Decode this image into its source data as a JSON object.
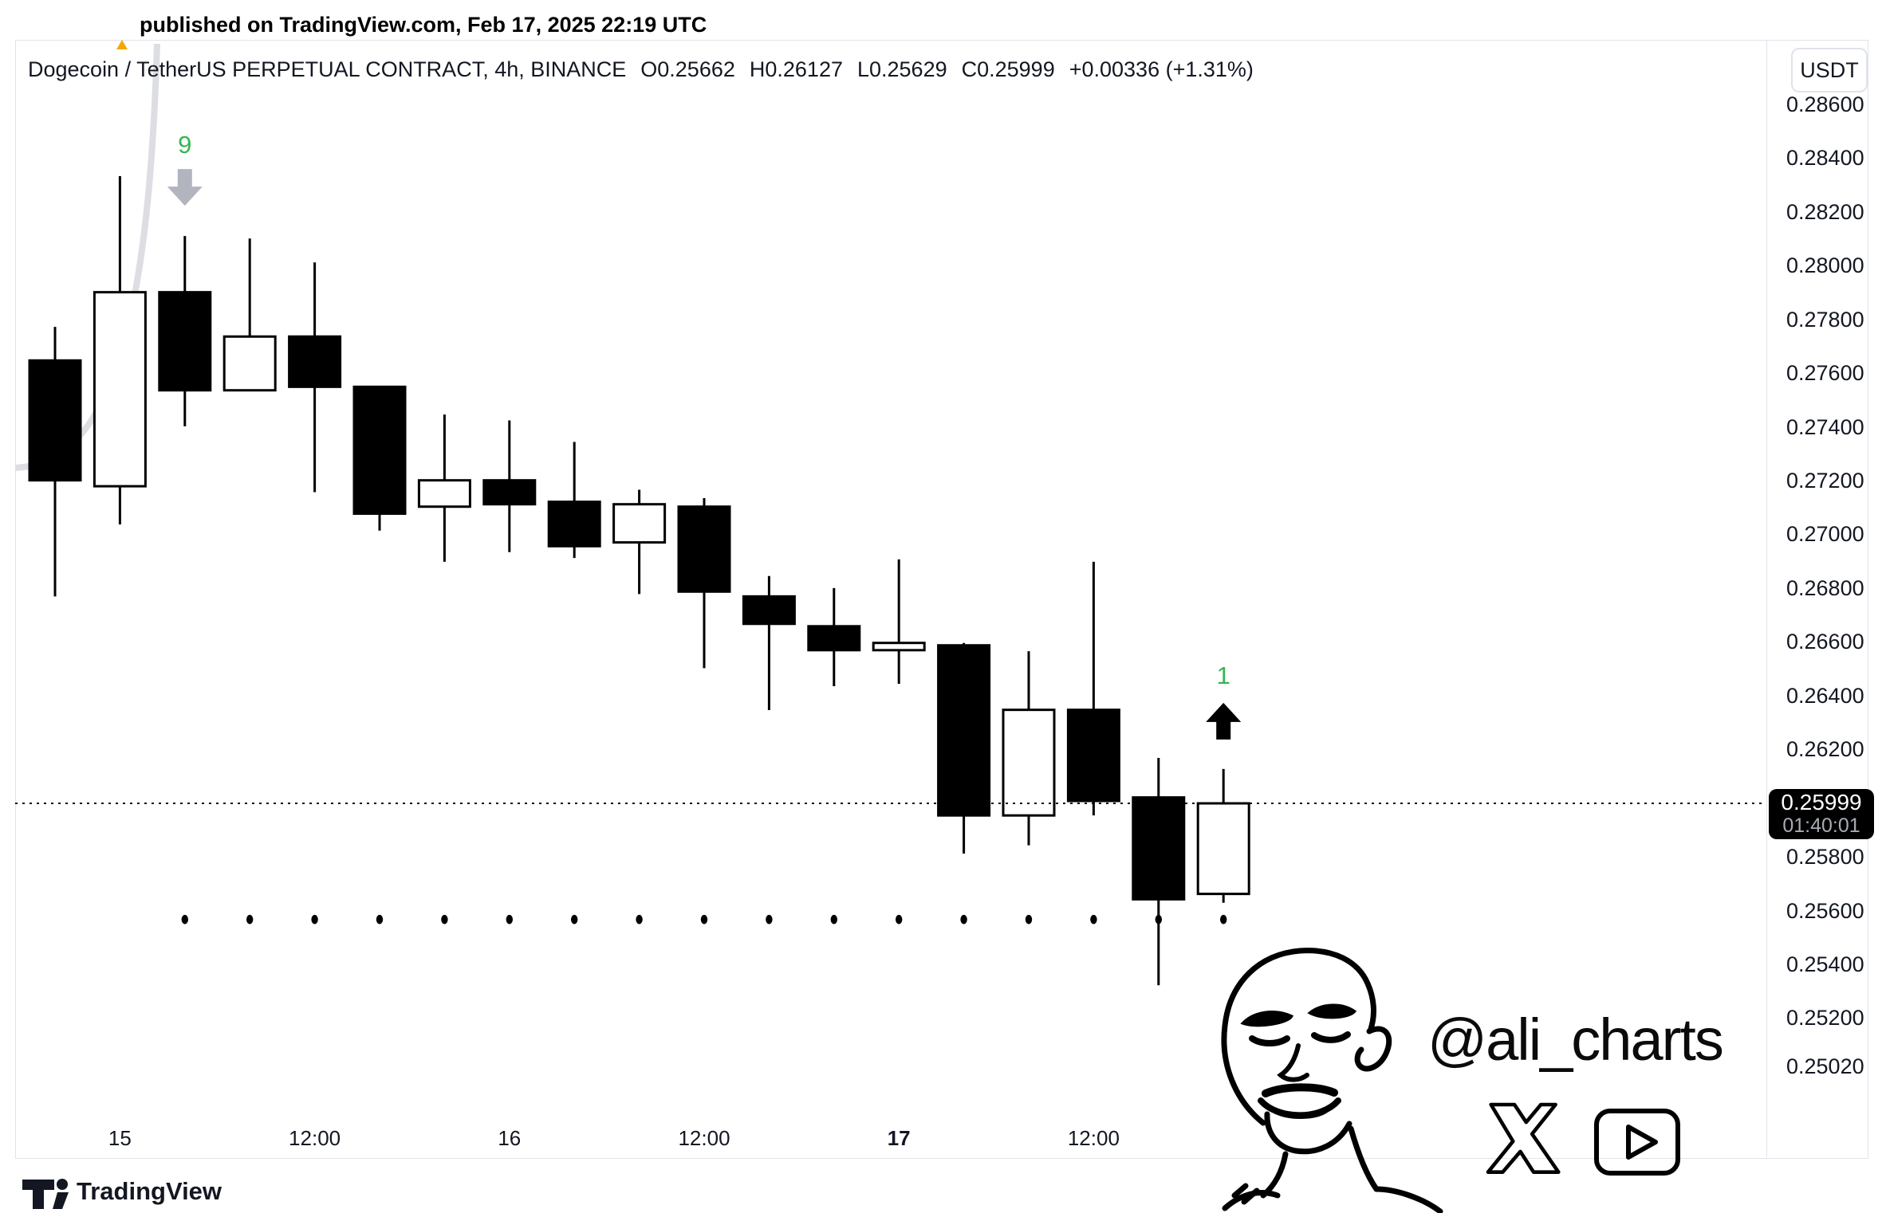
{
  "published": {
    "text": "published on TradingView.com, Feb 17, 2025 22:19 UTC"
  },
  "header": {
    "symbol_line": "Dogecoin / TetherUS PERPETUAL CONTRACT, 4h, BINANCE",
    "ohlc": {
      "open": "O0.25662",
      "high": "H0.26127",
      "low": "L0.25629",
      "close": "C0.25999",
      "change": "+0.00336 (+1.31%)"
    }
  },
  "price_axis": {
    "currency": "USDT",
    "labels": [
      0.286,
      0.284,
      0.282,
      0.28,
      0.278,
      0.276,
      0.274,
      0.272,
      0.27,
      0.268,
      0.266,
      0.264,
      0.262,
      0.258,
      0.256,
      0.254,
      0.252,
      0.2502
    ],
    "badge": {
      "price": "0.25999",
      "countdown": "01:40:01"
    }
  },
  "time_axis": {
    "labels": [
      {
        "text": "15",
        "candle_index": 1,
        "bold": false
      },
      {
        "text": "12:00",
        "candle_index": 4,
        "bold": false
      },
      {
        "text": "16",
        "candle_index": 7,
        "bold": false
      },
      {
        "text": "12:00",
        "candle_index": 10,
        "bold": false
      },
      {
        "text": "17",
        "candle_index": 13,
        "bold": true
      },
      {
        "text": "12:00",
        "candle_index": 16,
        "bold": false
      }
    ]
  },
  "chart_data": {
    "type": "candlestick",
    "symbol": "DOGEUSDT.P",
    "exchange": "BINANCE",
    "interval": "4h",
    "ylim": [
      0.24813,
      0.28846
    ],
    "grid": false,
    "last_price": 0.25999,
    "dots_level": 0.25567,
    "candles": [
      {
        "t": "Feb 14 20:00",
        "o": 0.27647,
        "h": 0.27772,
        "l": 0.26769,
        "c": 0.27201,
        "dot": false,
        "marker": null
      },
      {
        "t": "Feb 15 00:00",
        "o": 0.27179,
        "h": 0.28333,
        "l": 0.27037,
        "c": 0.27901,
        "dot": false,
        "marker": null
      },
      {
        "t": "Feb 15 04:00",
        "o": 0.27901,
        "h": 0.2811,
        "l": 0.27402,
        "c": 0.27536,
        "dot": true,
        "marker": "9"
      },
      {
        "t": "Feb 15 08:00",
        "o": 0.27536,
        "h": 0.28101,
        "l": 0.27536,
        "c": 0.27736,
        "dot": true,
        "marker": null
      },
      {
        "t": "Feb 15 12:00",
        "o": 0.27736,
        "h": 0.28012,
        "l": 0.27157,
        "c": 0.27549,
        "dot": true,
        "marker": null
      },
      {
        "t": "Feb 15 16:00",
        "o": 0.27549,
        "h": 0.27549,
        "l": 0.27014,
        "c": 0.27077,
        "dot": true,
        "marker": null
      },
      {
        "t": "Feb 15 20:00",
        "o": 0.27103,
        "h": 0.27446,
        "l": 0.26898,
        "c": 0.27201,
        "dot": true,
        "marker": null
      },
      {
        "t": "Feb 16 00:00",
        "o": 0.27201,
        "h": 0.27424,
        "l": 0.26934,
        "c": 0.27112,
        "dot": true,
        "marker": null
      },
      {
        "t": "Feb 16 04:00",
        "o": 0.27121,
        "h": 0.27344,
        "l": 0.26912,
        "c": 0.26956,
        "dot": true,
        "marker": null
      },
      {
        "t": "Feb 16 08:00",
        "o": 0.2697,
        "h": 0.27166,
        "l": 0.26778,
        "c": 0.27112,
        "dot": true,
        "marker": null
      },
      {
        "t": "Feb 16 12:00",
        "o": 0.27103,
        "h": 0.27135,
        "l": 0.26502,
        "c": 0.26787,
        "dot": true,
        "marker": null
      },
      {
        "t": "Feb 16 16:00",
        "o": 0.26769,
        "h": 0.26845,
        "l": 0.26346,
        "c": 0.26667,
        "dot": true,
        "marker": null
      },
      {
        "t": "Feb 16 20:00",
        "o": 0.26658,
        "h": 0.268,
        "l": 0.26435,
        "c": 0.26569,
        "dot": true,
        "marker": null
      },
      {
        "t": "Feb 17 00:00",
        "o": 0.26569,
        "h": 0.26907,
        "l": 0.26444,
        "c": 0.26596,
        "dot": true,
        "marker": null
      },
      {
        "t": "Feb 17 04:00",
        "o": 0.26587,
        "h": 0.26596,
        "l": 0.25812,
        "c": 0.25954,
        "dot": true,
        "marker": null
      },
      {
        "t": "Feb 17 08:00",
        "o": 0.25954,
        "h": 0.26565,
        "l": 0.25843,
        "c": 0.26347,
        "dot": true,
        "marker": null
      },
      {
        "t": "Feb 17 12:00",
        "o": 0.26347,
        "h": 0.26898,
        "l": 0.25954,
        "c": 0.26008,
        "dot": true,
        "marker": null
      },
      {
        "t": "Feb 17 16:00",
        "o": 0.26021,
        "h": 0.26168,
        "l": 0.25322,
        "c": 0.25642,
        "dot": true,
        "marker": null
      },
      {
        "t": "Feb 17 20:00",
        "o": 0.25662,
        "h": 0.26127,
        "l": 0.25629,
        "c": 0.25999,
        "dot": true,
        "marker": "1"
      }
    ]
  },
  "markers": [
    {
      "label": "9",
      "candle_index": 2,
      "direction": "down",
      "arrow_color": "#b2b5be"
    },
    {
      "label": "1",
      "candle_index": 18,
      "direction": "up",
      "arrow_color": "#000000"
    }
  ],
  "watermark": {
    "handle": "@ali_charts"
  },
  "footer": {
    "brand": "TradingView"
  },
  "colors": {
    "up_body": "#ffffff",
    "down_body": "#000000",
    "wick": "#000000",
    "setup_green": "#34b552",
    "arrow_gray": "#b2b5be",
    "grid_border": "#e0e3eb",
    "curve_gray": "#dcdee3",
    "anchor_orange": "#f7a600",
    "text": "#131722",
    "badge_bg": "#000000",
    "countdown_text": "#a8abb3"
  }
}
